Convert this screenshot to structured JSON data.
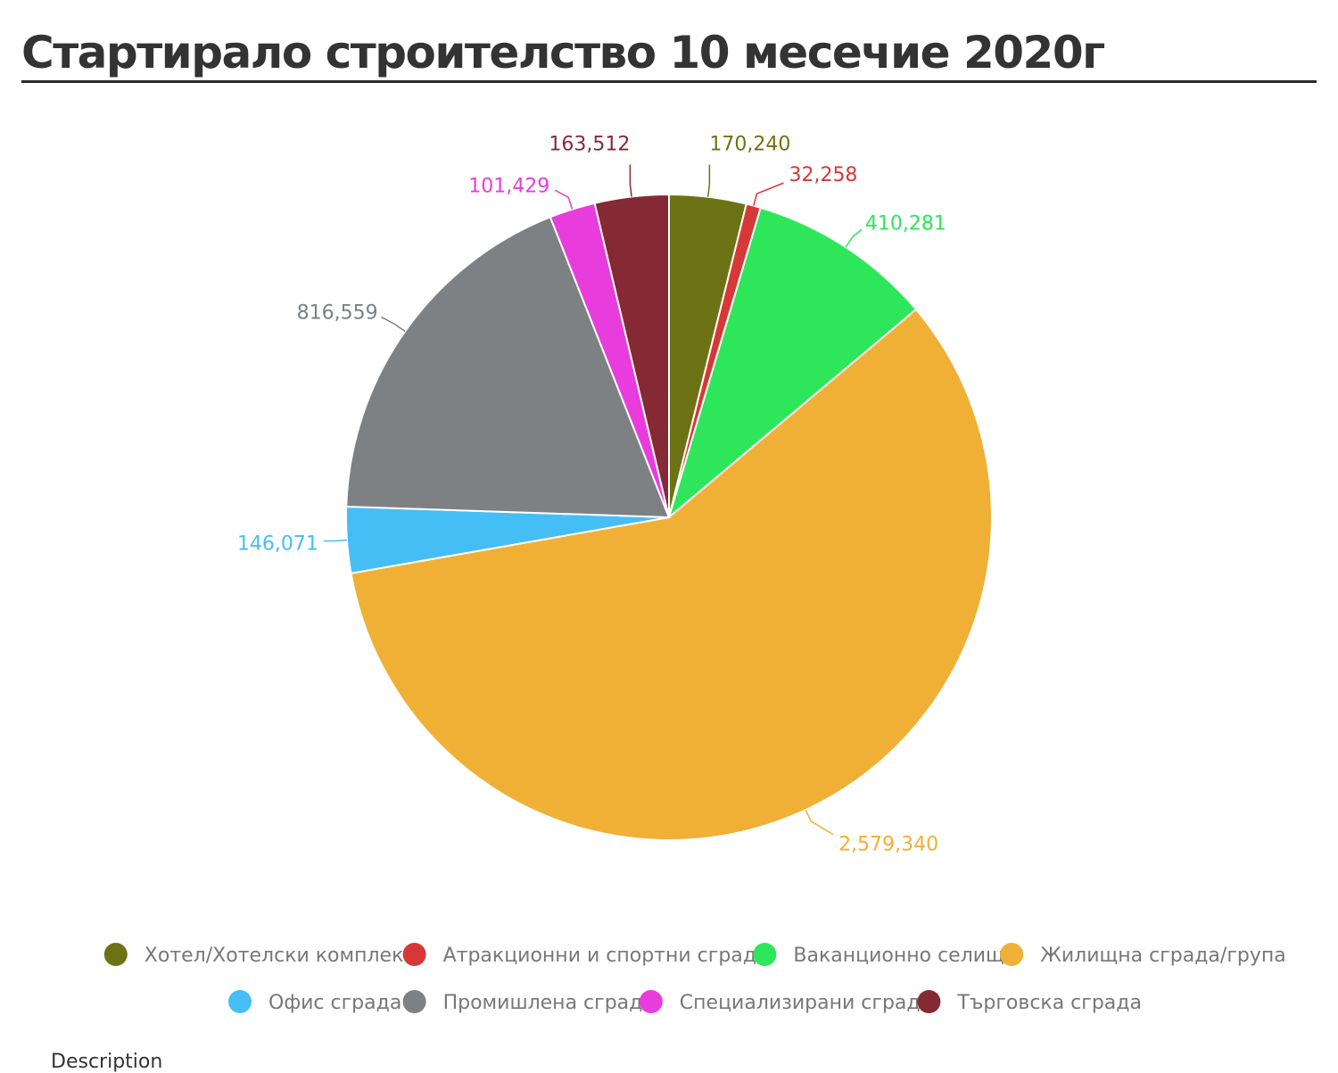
{
  "title": "Стартирало строителство 10 месечие 2020г",
  "description": "Description",
  "chart_data": {
    "type": "pie",
    "start_angle_deg": 0,
    "direction": "clockwise",
    "legend_position": "bottom",
    "categories": [
      "Хотел/Хотелски комплекс",
      "Атракционни и спортни сгради",
      "Ваканционно селище",
      "Жилищна сграда/група",
      "Офис сграда",
      "Промишлена сграда",
      "Специализирани сгради",
      "Търговска сграда"
    ],
    "values": [
      170240,
      32258,
      410281,
      2579340,
      146071,
      816559,
      101429,
      163512
    ],
    "labels": [
      "170,240",
      "32,258",
      "410,281",
      "2,579,340",
      "146,071",
      "816,559",
      "101,429",
      "163,512"
    ],
    "colors": [
      "#6d7314",
      "#d63838",
      "#2ee65a",
      "#f0b036",
      "#45bef5",
      "#7d8184",
      "#e83ddc",
      "#852a35"
    ]
  }
}
